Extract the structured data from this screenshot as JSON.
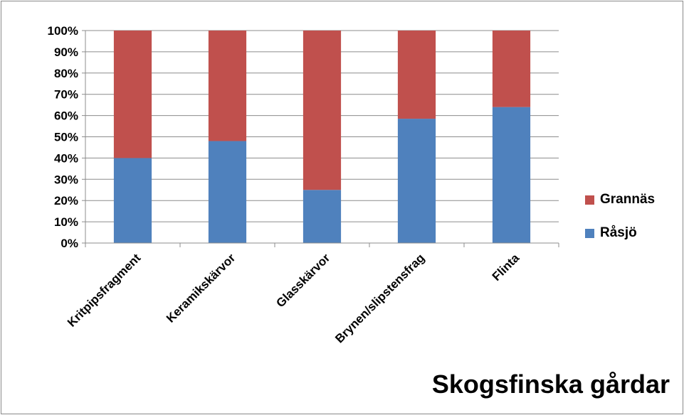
{
  "caption": "Skogsfinska gårdar",
  "chart_data": {
    "type": "bar",
    "stacked": true,
    "percent_stacked": true,
    "categories": [
      "Kritpipsfragment",
      "Keramikskärvor",
      "Glasskärvor",
      "Brynen/slipstensfrag",
      "Flinta"
    ],
    "series": [
      {
        "name": "Råsjö",
        "color": "#4f81bd",
        "values": [
          40,
          48,
          25,
          58.5,
          64
        ]
      },
      {
        "name": "Grannäs",
        "color": "#c0504d",
        "values": [
          60,
          52,
          75,
          41.5,
          36
        ]
      }
    ],
    "ylim": [
      0,
      100
    ],
    "yticks": [
      "0%",
      "10%",
      "20%",
      "30%",
      "40%",
      "50%",
      "60%",
      "70%",
      "80%",
      "90%",
      "100%"
    ],
    "grid": true,
    "legend_position": "right",
    "legend_order": [
      "Grannäs",
      "Råsjö"
    ]
  }
}
